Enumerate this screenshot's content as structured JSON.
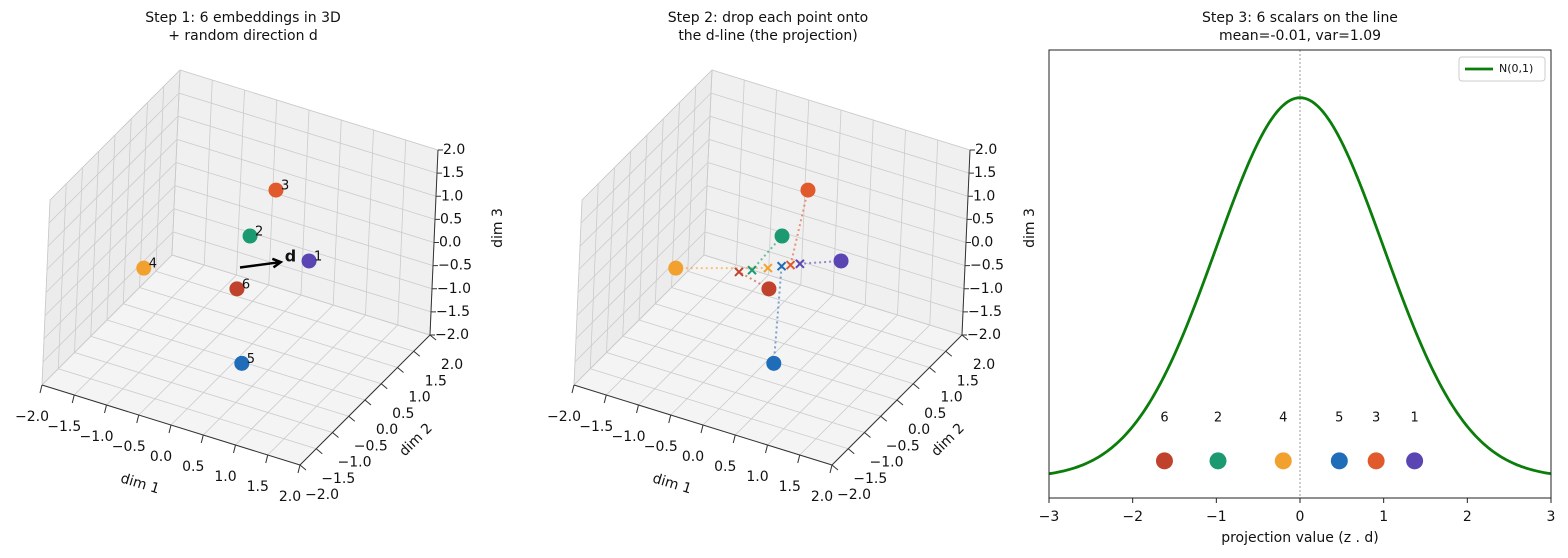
{
  "chart_data": [
    {
      "type": "scatter3d",
      "title": [
        "Step 1: 6 embeddings in 3D",
        "+ random direction d"
      ],
      "xlabel": "dim 1",
      "ylabel": "dim 2",
      "zlabel": "dim 3",
      "xlim": [
        -2,
        2
      ],
      "ylim": [
        -2,
        2
      ],
      "zlim": [
        -2,
        2
      ],
      "xticks": [
        {
          "value": -2,
          "label": "−2.0"
        },
        {
          "value": -1.5,
          "label": "−1.5"
        },
        {
          "value": -1,
          "label": "−1.0"
        },
        {
          "value": -0.5,
          "label": "−0.5"
        },
        {
          "value": 0,
          "label": "0.0"
        },
        {
          "value": 0.5,
          "label": "0.5"
        },
        {
          "value": 1,
          "label": "1.0"
        },
        {
          "value": 1.5,
          "label": "1.5"
        },
        {
          "value": 2,
          "label": "2.0"
        }
      ],
      "yticks": [
        {
          "value": -2,
          "label": "−2.0"
        },
        {
          "value": -1.5,
          "label": "−1.5"
        },
        {
          "value": -1,
          "label": "−1.0"
        },
        {
          "value": -0.5,
          "label": "−0.5"
        },
        {
          "value": 0,
          "label": "0.0"
        },
        {
          "value": 0.5,
          "label": "0.5"
        },
        {
          "value": 1,
          "label": "1.0"
        },
        {
          "value": 1.5,
          "label": "1.5"
        },
        {
          "value": 2,
          "label": "2.0"
        }
      ],
      "zticks": [
        {
          "value": -2,
          "label": "−2.0"
        },
        {
          "value": -1.5,
          "label": "−1.5"
        },
        {
          "value": -1,
          "label": "−1.0"
        },
        {
          "value": -0.5,
          "label": "−0.5"
        },
        {
          "value": 0,
          "label": "0.0"
        },
        {
          "value": 0.5,
          "label": "0.5"
        },
        {
          "value": 1,
          "label": "1.0"
        },
        {
          "value": 1.5,
          "label": "1.5"
        },
        {
          "value": 2,
          "label": "2.0"
        }
      ],
      "labels": [
        "1",
        "2",
        "3",
        "4",
        "5",
        "6"
      ],
      "colors": [
        "#5a45b3",
        "#1b9a72",
        "#e05a2c",
        "#f2a12e",
        "#1f6cb8",
        "#c0422c"
      ],
      "x": [
        1.19,
        -0.4,
        0.29,
        -1.11,
        0.7,
        -0.48
      ],
      "y": [
        -0.29,
        1.12,
        0.44,
        -0.76,
        -1.28,
        0.94
      ],
      "z": [
        0.86,
        -0.28,
        1.49,
        0.04,
        -0.87,
        -1.33
      ],
      "direction": [
        0.553,
        -0.511,
        0.657
      ],
      "direction_label": "d"
    },
    {
      "type": "scatter3d",
      "title": [
        "Step 2: drop each point onto",
        "the d-line (the projection)"
      ],
      "xlabel": "dim 1",
      "ylabel": "dim 2",
      "zlabel": "dim 3",
      "xlim": [
        -2,
        2
      ],
      "ylim": [
        -2,
        2
      ],
      "zlim": [
        -2,
        2
      ],
      "xticks": [
        {
          "value": -2,
          "label": "−2.0"
        },
        {
          "value": -1.5,
          "label": "−1.5"
        },
        {
          "value": -1,
          "label": "−1.0"
        },
        {
          "value": -0.5,
          "label": "−0.5"
        },
        {
          "value": 0,
          "label": "0.0"
        },
        {
          "value": 0.5,
          "label": "0.5"
        },
        {
          "value": 1,
          "label": "1.0"
        },
        {
          "value": 1.5,
          "label": "1.5"
        },
        {
          "value": 2,
          "label": "2.0"
        }
      ],
      "yticks": [
        {
          "value": -2,
          "label": "−2.0"
        },
        {
          "value": -1.5,
          "label": "−1.5"
        },
        {
          "value": -1,
          "label": "−1.0"
        },
        {
          "value": -0.5,
          "label": "−0.5"
        },
        {
          "value": 0,
          "label": "0.0"
        },
        {
          "value": 0.5,
          "label": "0.5"
        },
        {
          "value": 1,
          "label": "1.0"
        },
        {
          "value": 1.5,
          "label": "1.5"
        },
        {
          "value": 2,
          "label": "2.0"
        }
      ],
      "zticks": [
        {
          "value": -2,
          "label": "−2.0"
        },
        {
          "value": -1.5,
          "label": "−1.5"
        },
        {
          "value": -1,
          "label": "−1.0"
        },
        {
          "value": -0.5,
          "label": "−0.5"
        },
        {
          "value": 0,
          "label": "0.0"
        },
        {
          "value": 0.5,
          "label": "0.5"
        },
        {
          "value": 1,
          "label": "1.0"
        },
        {
          "value": 1.5,
          "label": "1.5"
        },
        {
          "value": 2,
          "label": "2.0"
        }
      ],
      "colors": [
        "#5a45b3",
        "#1b9a72",
        "#e05a2c",
        "#f2a12e",
        "#1f6cb8",
        "#c0422c"
      ],
      "x": [
        1.19,
        -0.4,
        0.29,
        -1.11,
        0.7,
        -0.48
      ],
      "y": [
        -0.29,
        1.12,
        0.44,
        -0.76,
        -1.28,
        0.94
      ],
      "z": [
        0.86,
        -0.28,
        1.49,
        0.04,
        -0.87,
        -1.33
      ],
      "direction": [
        0.553,
        -0.511,
        0.657
      ],
      "projections": [
        1.37,
        -0.98,
        0.91,
        -0.2,
        0.47,
        -1.62
      ]
    },
    {
      "type": "pdf",
      "title": [
        "Step 3: 6 scalars on the line",
        "mean=-0.01, var=1.09"
      ],
      "xlabel": "projection value (z . d)",
      "xlim": [
        -3,
        3
      ],
      "ylim": [
        -0.021,
        0.449
      ],
      "xticks": [
        {
          "value": -3,
          "label": "−3"
        },
        {
          "value": -2,
          "label": "−2"
        },
        {
          "value": -1,
          "label": "−1"
        },
        0,
        1,
        2,
        3
      ],
      "curve": {
        "name": "N(0,1)",
        "mean": 0,
        "sd": 1,
        "color": "#0a7d0a"
      },
      "vline": 0,
      "legend": "upper right",
      "points": {
        "labels": [
          "1",
          "2",
          "3",
          "4",
          "5",
          "6"
        ],
        "x": [
          1.37,
          -0.98,
          0.91,
          -0.2,
          0.47,
          -1.62
        ],
        "y": [
          0.018,
          0.018,
          0.018,
          0.018,
          0.018,
          0.018
        ],
        "colors": [
          "#5a45b3",
          "#1b9a72",
          "#e05a2c",
          "#f2a12e",
          "#1f6cb8",
          "#c0422c"
        ]
      }
    }
  ]
}
